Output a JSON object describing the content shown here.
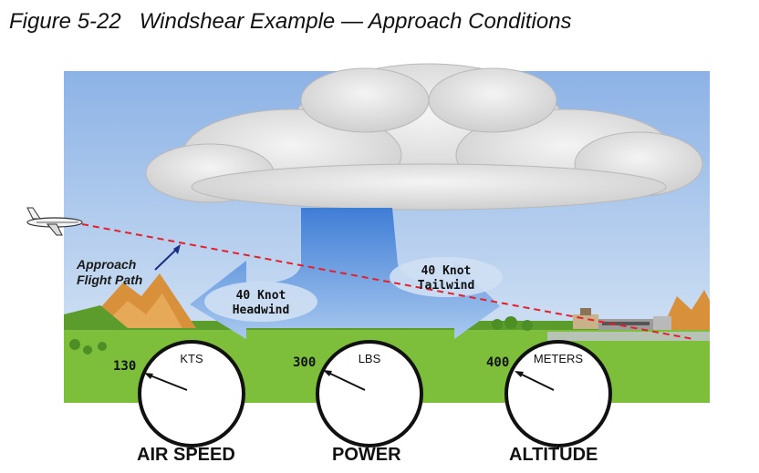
{
  "title": {
    "number": "Figure 5-22",
    "text": "Windshear Example — Approach Conditions"
  },
  "labels": {
    "flight_path_line1": "Approach",
    "flight_path_line2": "Flight Path",
    "headwind_line1": "40 Knot",
    "headwind_line2": "Headwind",
    "tailwind_line1": "40 Knot",
    "tailwind_line2": "Tailwind"
  },
  "gauges": [
    {
      "unit": "KTS",
      "value": "130",
      "name": "AIR SPEED"
    },
    {
      "unit": "LBS",
      "value": "300",
      "name": "POWER"
    },
    {
      "unit": "METERS",
      "value": "400",
      "name": "ALTITUDE"
    }
  ],
  "colors": {
    "sky": "#8fb4e6",
    "grass": "#7dbf3a",
    "flight_path": "#e4202a",
    "wind": "#5a8fd6"
  }
}
